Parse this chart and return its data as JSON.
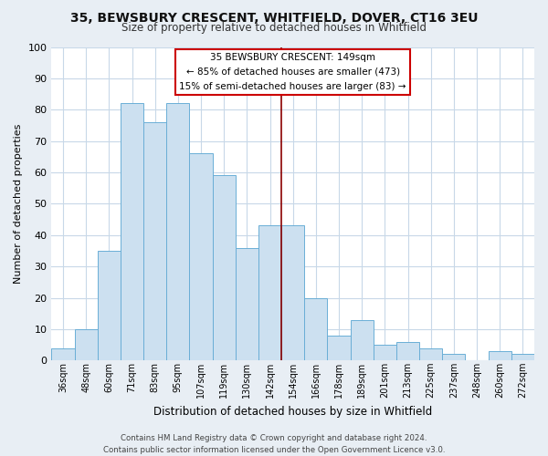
{
  "title_line1": "35, BEWSBURY CRESCENT, WHITFIELD, DOVER, CT16 3EU",
  "title_line2": "Size of property relative to detached houses in Whitfield",
  "xlabel": "Distribution of detached houses by size in Whitfield",
  "ylabel": "Number of detached properties",
  "categories": [
    "36sqm",
    "48sqm",
    "60sqm",
    "71sqm",
    "83sqm",
    "95sqm",
    "107sqm",
    "119sqm",
    "130sqm",
    "142sqm",
    "154sqm",
    "166sqm",
    "178sqm",
    "189sqm",
    "201sqm",
    "213sqm",
    "225sqm",
    "237sqm",
    "248sqm",
    "260sqm",
    "272sqm"
  ],
  "values": [
    4,
    10,
    35,
    82,
    76,
    82,
    66,
    59,
    36,
    43,
    43,
    20,
    8,
    13,
    5,
    6,
    4,
    2,
    0,
    3,
    2
  ],
  "bar_color": "#cce0f0",
  "bar_edge_color": "#6aaed6",
  "highlight_index": 10,
  "highlight_line_color": "#8b0000",
  "ylim": [
    0,
    100
  ],
  "yticks": [
    0,
    10,
    20,
    30,
    40,
    50,
    60,
    70,
    80,
    90,
    100
  ],
  "annotation_box_title": "35 BEWSBURY CRESCENT: 149sqm",
  "annotation_line1": "← 85% of detached houses are smaller (473)",
  "annotation_line2": "15% of semi-detached houses are larger (83) →",
  "annotation_box_color": "#ffffff",
  "annotation_box_edgecolor": "#cc0000",
  "footer_line1": "Contains HM Land Registry data © Crown copyright and database right 2024.",
  "footer_line2": "Contains public sector information licensed under the Open Government Licence v3.0.",
  "bg_color": "#e8eef4",
  "plot_bg_color": "#ffffff",
  "grid_color": "#c8d8e8"
}
